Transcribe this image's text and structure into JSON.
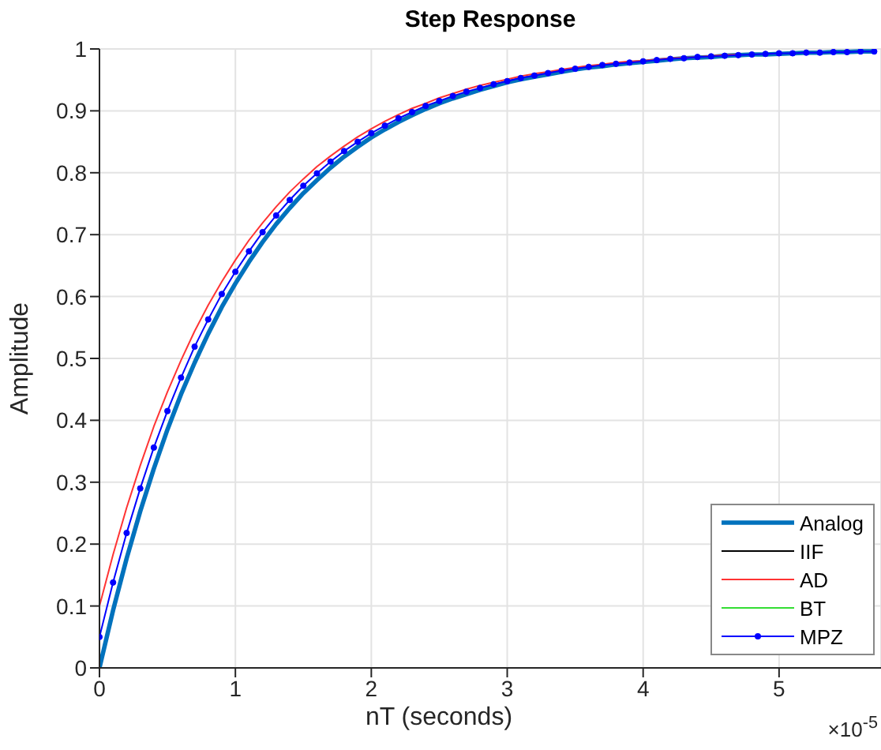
{
  "chart_data": {
    "type": "line",
    "title": "Step Response",
    "xlabel": "nT (seconds)",
    "ylabel": "Amplitude",
    "annotations": [
      "×10$^{-5}$"
    ],
    "x": [
      0,
      0.1,
      0.2,
      0.3,
      0.4,
      0.5,
      0.6,
      0.7,
      0.8,
      0.9,
      1,
      1.1,
      1.2,
      1.3,
      1.4,
      1.5,
      1.6,
      1.7,
      1.8,
      1.9,
      2,
      2.1,
      2.2,
      2.3,
      2.4,
      2.5,
      2.6,
      2.7,
      2.8,
      2.9,
      3,
      3.1,
      3.2,
      3.3,
      3.4,
      3.5,
      3.6,
      3.7,
      3.8,
      3.9,
      4,
      4.1,
      4.2,
      4.3,
      4.4,
      4.5,
      4.6,
      4.7,
      4.8,
      4.9,
      5,
      5.1,
      5.2,
      5.3,
      5.4,
      5.5,
      5.6,
      5.7
    ],
    "series": [
      {
        "name": "Analog",
        "color": "#0072bd",
        "marker": "none",
        "values": [
          0,
          0.093,
          0.177,
          0.253,
          0.322,
          0.385,
          0.442,
          0.493,
          0.54,
          0.583,
          0.621,
          0.656,
          0.688,
          0.717,
          0.743,
          0.767,
          0.788,
          0.808,
          0.826,
          0.842,
          0.857,
          0.87,
          0.882,
          0.893,
          0.903,
          0.912,
          0.92,
          0.927,
          0.934,
          0.94,
          0.946,
          0.951,
          0.955,
          0.959,
          0.963,
          0.967,
          0.97,
          0.972,
          0.975,
          0.977,
          0.979,
          0.981,
          0.983,
          0.985,
          0.986,
          0.987,
          0.989,
          0.99,
          0.991,
          0.991,
          0.992,
          0.993,
          0.994,
          0.994,
          0.995,
          0.995,
          0.996,
          0.996
        ]
      },
      {
        "name": "IIF",
        "color": "#000000",
        "marker": "none",
        "values": [
          null,
          null,
          null,
          null,
          null,
          null,
          null,
          null,
          null,
          null,
          null,
          null,
          null,
          null,
          null,
          null,
          null,
          null,
          null,
          null,
          null,
          null,
          null,
          null,
          null,
          null,
          null,
          null,
          null,
          null,
          null,
          null,
          null,
          null,
          null,
          null,
          null,
          null,
          null,
          null,
          null,
          null,
          null,
          null,
          null,
          null,
          null,
          null,
          null,
          null,
          null,
          null,
          null,
          null,
          null,
          null,
          null,
          null
        ]
      },
      {
        "name": "AD",
        "color": "#ff3333",
        "marker": "none",
        "values": [
          0.1,
          0.183,
          0.259,
          0.327,
          0.39,
          0.446,
          0.497,
          0.544,
          0.586,
          0.624,
          0.659,
          0.691,
          0.719,
          0.745,
          0.769,
          0.79,
          0.81,
          0.827,
          0.843,
          0.858,
          0.871,
          0.883,
          0.894,
          0.904,
          0.912,
          0.921,
          0.928,
          0.935,
          0.941,
          0.946,
          0.951,
          0.956,
          0.96,
          0.963,
          0.967,
          0.97,
          0.973,
          0.975,
          0.978,
          0.98,
          0.981,
          0.983,
          0.985,
          0.986,
          0.987,
          0.989,
          0.99,
          0.991,
          null,
          null,
          null,
          null,
          null,
          null,
          null,
          null,
          null,
          null
        ]
      },
      {
        "name": "BT",
        "color": "#33dd33",
        "marker": "none",
        "values": [
          null,
          null,
          null,
          null,
          null,
          null,
          null,
          null,
          null,
          null,
          null,
          null,
          null,
          null,
          null,
          null,
          null,
          null,
          null,
          null,
          null,
          null,
          null,
          null,
          null,
          null,
          null,
          null,
          null,
          null,
          null,
          null,
          null,
          null,
          null,
          null,
          null,
          null,
          null,
          null,
          null,
          null,
          null,
          null,
          null,
          null,
          null,
          null,
          null,
          null,
          null,
          null,
          null,
          null,
          null,
          null,
          null,
          null
        ]
      },
      {
        "name": "MPZ",
        "color": "#0000ff",
        "marker": "circle",
        "values": [
          0.05,
          0.138,
          0.218,
          0.29,
          0.356,
          0.415,
          0.469,
          0.519,
          0.563,
          0.604,
          0.64,
          0.673,
          0.704,
          0.731,
          0.756,
          0.779,
          0.799,
          0.818,
          0.835,
          0.85,
          0.864,
          0.876,
          0.888,
          0.898,
          0.908,
          0.916,
          0.924,
          0.931,
          0.937,
          0.943,
          0.948,
          0.953,
          0.957,
          0.961,
          0.965,
          0.968,
          0.971,
          0.974,
          0.976,
          0.978,
          0.98,
          0.982,
          0.984,
          0.985,
          0.987,
          0.988,
          0.989,
          0.99,
          0.991,
          0.992,
          0.993,
          0.993,
          0.994,
          0.994,
          0.995,
          0.995,
          0.996,
          0.996
        ]
      }
    ],
    "xlim": [
      0,
      5.75
    ],
    "xticks": [
      0,
      1,
      2,
      3,
      4,
      5
    ],
    "ylim": [
      0,
      1
    ],
    "yticks": [
      0,
      0.1,
      0.2,
      0.3,
      0.4,
      0.5,
      0.6,
      0.7,
      0.8,
      0.9,
      1
    ],
    "grid": true,
    "legend": "bottom right"
  }
}
